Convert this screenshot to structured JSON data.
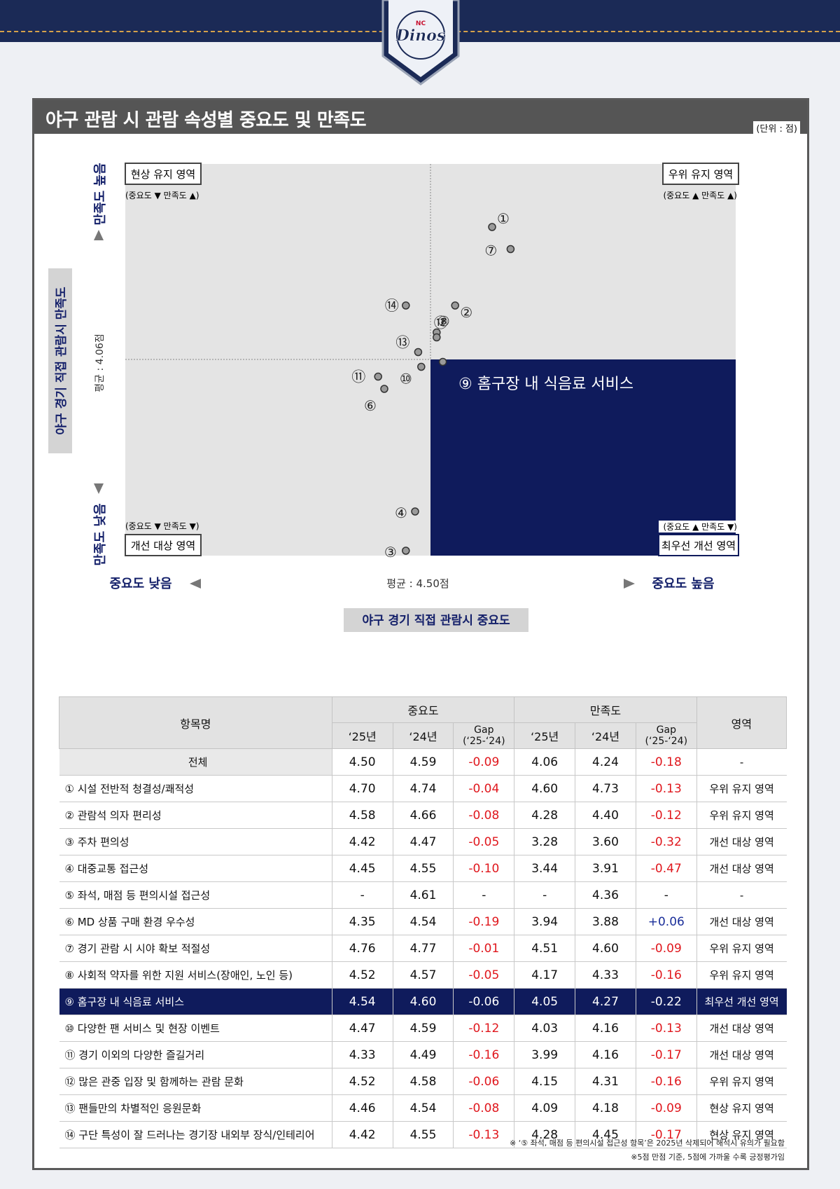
{
  "logo": {
    "text": "Dinos",
    "small_text": "NC"
  },
  "panel": {
    "title": "야구 관람 시 관람 속성별 중요도 및 만족도",
    "unit": "(단위 : 점)"
  },
  "quadrants": {
    "top_left": {
      "label": "현상 유지 영역",
      "sub": "(중요도 ▼ 만족도 ▲)"
    },
    "top_right": {
      "label": "우위 유지 영역",
      "sub": "(중요도 ▲ 만족도 ▲)"
    },
    "bottom_left": {
      "label": "개선 대상 영역",
      "sub": "(중요도 ▼ 만족도 ▼)"
    },
    "bottom_right": {
      "label": "최우선 개선 영역",
      "sub": "(중요도 ▲ 만족도 ▼)"
    }
  },
  "callout": "⑨ 홈구장 내 식음료 서비스",
  "axes": {
    "y_title": "야구 경기 직접 관람시 만족도",
    "y_high": "만족도 높음",
    "y_low": "만족도 낮음",
    "y_avg": "평균 : 4.06점",
    "x_title": "야구 경기 직접 관람시 중요도",
    "x_low": "중요도 낮음",
    "x_high": "중요도 높음",
    "x_avg": "평균 :  4.50점"
  },
  "colors": {
    "navy": "#0f1b5c",
    "negative": "#e0171d",
    "positive": "#1b2f9a",
    "quadrant_gray": "#e4e4e4"
  },
  "chart_data": {
    "type": "scatter",
    "x_label": "야구 경기 직접 관람시 중요도",
    "y_label": "야구 경기 직접 관람시 만족도",
    "x_mean": 4.5,
    "y_mean": 4.06,
    "points": [
      {
        "label": "①",
        "x": 4.7,
        "y": 4.6
      },
      {
        "label": "②",
        "x": 4.58,
        "y": 4.28
      },
      {
        "label": "③",
        "x": 4.42,
        "y": 3.28
      },
      {
        "label": "④",
        "x": 4.45,
        "y": 3.44
      },
      {
        "label": "⑥",
        "x": 4.35,
        "y": 3.94
      },
      {
        "label": "⑦",
        "x": 4.76,
        "y": 4.51
      },
      {
        "label": "⑧",
        "x": 4.52,
        "y": 4.17
      },
      {
        "label": "⑨",
        "x": 4.54,
        "y": 4.05
      },
      {
        "label": "⑩",
        "x": 4.47,
        "y": 4.03
      },
      {
        "label": "⑪",
        "x": 4.33,
        "y": 3.99
      },
      {
        "label": "⑫",
        "x": 4.52,
        "y": 4.15
      },
      {
        "label": "⑬",
        "x": 4.46,
        "y": 4.09
      },
      {
        "label": "⑭",
        "x": 4.42,
        "y": 4.28
      }
    ]
  },
  "table": {
    "header": {
      "name": "항목명",
      "importance": "중요도",
      "satisfaction": "만족도",
      "region": "영역",
      "y25": "‘25년",
      "y24": "‘24년",
      "gap": "Gap",
      "gap_sub": "(‘25-‘24)"
    },
    "rows": [
      {
        "name": "전체",
        "i25": "4.50",
        "i24": "4.59",
        "igap": "-0.09",
        "s25": "4.06",
        "s24": "4.24",
        "sgap": "-0.18",
        "region": "-"
      },
      {
        "name": "① 시설 전반적 청결성/쾌적성",
        "i25": "4.70",
        "i24": "4.74",
        "igap": "-0.04",
        "s25": "4.60",
        "s24": "4.73",
        "sgap": "-0.13",
        "region": "우위 유지 영역"
      },
      {
        "name": "② 관람석 의자 편리성",
        "i25": "4.58",
        "i24": "4.66",
        "igap": "-0.08",
        "s25": "4.28",
        "s24": "4.40",
        "sgap": "-0.12",
        "region": "우위 유지 영역"
      },
      {
        "name": "③ 주차 편의성",
        "i25": "4.42",
        "i24": "4.47",
        "igap": "-0.05",
        "s25": "3.28",
        "s24": "3.60",
        "sgap": "-0.32",
        "region": "개선 대상 영역"
      },
      {
        "name": "④ 대중교통 접근성",
        "i25": "4.45",
        "i24": "4.55",
        "igap": "-0.10",
        "s25": "3.44",
        "s24": "3.91",
        "sgap": "-0.47",
        "region": "개선 대상 영역"
      },
      {
        "name": "⑤ 좌석, 매점 등 편의시설 접근성",
        "i25": "-",
        "i24": "4.61",
        "igap": "-",
        "s25": "-",
        "s24": "4.36",
        "sgap": "-",
        "region": "-"
      },
      {
        "name": "⑥ MD 상품 구매 환경 우수성",
        "i25": "4.35",
        "i24": "4.54",
        "igap": "-0.19",
        "s25": "3.94",
        "s24": "3.88",
        "sgap": "+0.06",
        "region": "개선 대상 영역"
      },
      {
        "name": "⑦ 경기 관람 시 시야 확보 적절성",
        "i25": "4.76",
        "i24": "4.77",
        "igap": "-0.01",
        "s25": "4.51",
        "s24": "4.60",
        "sgap": "-0.09",
        "region": "우위 유지 영역"
      },
      {
        "name": "⑧ 사회적 약자를 위한 지원 서비스(장애인, 노인 등)",
        "i25": "4.52",
        "i24": "4.57",
        "igap": "-0.05",
        "s25": "4.17",
        "s24": "4.33",
        "sgap": "-0.16",
        "region": "우위 유지 영역"
      },
      {
        "name": "⑨ 홈구장 내 식음료 서비스",
        "i25": "4.54",
        "i24": "4.60",
        "igap": "-0.06",
        "s25": "4.05",
        "s24": "4.27",
        "sgap": "-0.22",
        "region": "최우선 개선 영역"
      },
      {
        "name": "⑩ 다양한 팬 서비스 및 현장 이벤트",
        "i25": "4.47",
        "i24": "4.59",
        "igap": "-0.12",
        "s25": "4.03",
        "s24": "4.16",
        "sgap": "-0.13",
        "region": "개선 대상 영역"
      },
      {
        "name": "⑪ 경기 이외의 다양한 즐길거리",
        "i25": "4.33",
        "i24": "4.49",
        "igap": "-0.16",
        "s25": "3.99",
        "s24": "4.16",
        "sgap": "-0.17",
        "region": "개선 대상 영역"
      },
      {
        "name": "⑫ 많은 관중 입장 및 함께하는 관람 문화",
        "i25": "4.52",
        "i24": "4.58",
        "igap": "-0.06",
        "s25": "4.15",
        "s24": "4.31",
        "sgap": "-0.16",
        "region": "우위 유지 영역"
      },
      {
        "name": "⑬ 팬들만의 차별적인 응원문화",
        "i25": "4.46",
        "i24": "4.54",
        "igap": "-0.08",
        "s25": "4.09",
        "s24": "4.18",
        "sgap": "-0.09",
        "region": "현상 유지 영역"
      },
      {
        "name": "⑭ 구단 특성이 잘 드러나는 경기장 내외부 장식/인테리어",
        "i25": "4.42",
        "i24": "4.55",
        "igap": "-0.13",
        "s25": "4.28",
        "s24": "4.45",
        "sgap": "-0.17",
        "region": "현상 유지 영역"
      }
    ],
    "highlight_row": 9
  },
  "notes": [
    "※ ‘⑤ 좌석, 매점 등 편의시설 접근성 항목’은 2025년 삭제되어 해석시 유의가 필요함",
    "※5점 만점 기준, 5점에 가까울 수록 긍정평가임"
  ]
}
